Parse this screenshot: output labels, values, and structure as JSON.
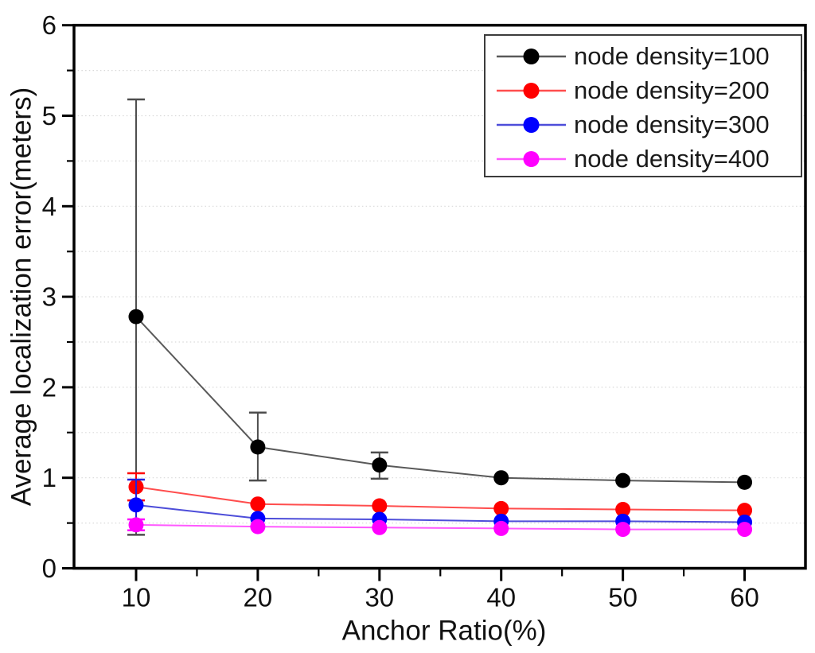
{
  "chart_data": {
    "type": "line",
    "title": "",
    "xlabel": "Anchor Ratio(%)",
    "ylabel": "Average localization error(meters)",
    "x": [
      10,
      20,
      30,
      40,
      50,
      60
    ],
    "xlim": [
      4.9,
      65
    ],
    "ylim": [
      0,
      6
    ],
    "x_major_ticks": [
      "10",
      "20",
      "30",
      "40",
      "50",
      "60"
    ],
    "x_minor_ticks": [
      15,
      25,
      35,
      45,
      55
    ],
    "y_major_ticks": [
      "0",
      "1",
      "2",
      "3",
      "4",
      "5",
      "6"
    ],
    "y_minor_ticks": [
      0.5,
      1.5,
      2.5,
      3.5,
      4.5,
      5.5
    ],
    "grid": {
      "horizontal": true,
      "step": 0.5,
      "style": "dotted",
      "color": "#d9d9d9"
    },
    "legend": {
      "position": "top-right",
      "border_color": "#3c3c3c"
    },
    "series": [
      {
        "name": "node density=100",
        "marker_color": "#000000",
        "line_color": "#595959",
        "error_color": "#4d4d4d",
        "values": [
          2.78,
          1.34,
          1.14,
          1.0,
          0.97,
          0.95
        ],
        "error_minus": [
          2.41,
          0.37,
          0.15,
          0,
          0,
          0
        ],
        "error_plus": [
          2.4,
          0.38,
          0.14,
          0,
          0,
          0
        ]
      },
      {
        "name": "node density=200",
        "marker_color": "#ff0000",
        "line_color": "#ff4d4d",
        "error_color": "#ff0000",
        "values": [
          0.9,
          0.71,
          0.69,
          0.66,
          0.65,
          0.64
        ],
        "error_minus": [
          0.15,
          0,
          0,
          0,
          0,
          0
        ],
        "error_plus": [
          0.15,
          0,
          0,
          0,
          0,
          0
        ]
      },
      {
        "name": "node density=300",
        "marker_color": "#0000ff",
        "line_color": "#4d4dd9",
        "error_color": "#2222dd",
        "values": [
          0.7,
          0.55,
          0.54,
          0.52,
          0.52,
          0.51
        ],
        "error_minus": [
          0.28,
          0,
          0,
          0,
          0,
          0
        ],
        "error_plus": [
          0.28,
          0,
          0,
          0,
          0,
          0
        ]
      },
      {
        "name": "node density=400",
        "marker_color": "#ff00ff",
        "line_color": "#ff59ff",
        "error_color": "#ff00ff",
        "values": [
          0.48,
          0.46,
          0.45,
          0.44,
          0.43,
          0.43
        ],
        "error_minus": [
          0.06,
          0,
          0,
          0,
          0,
          0
        ],
        "error_plus": [
          0.06,
          0,
          0,
          0,
          0,
          0
        ]
      }
    ]
  }
}
